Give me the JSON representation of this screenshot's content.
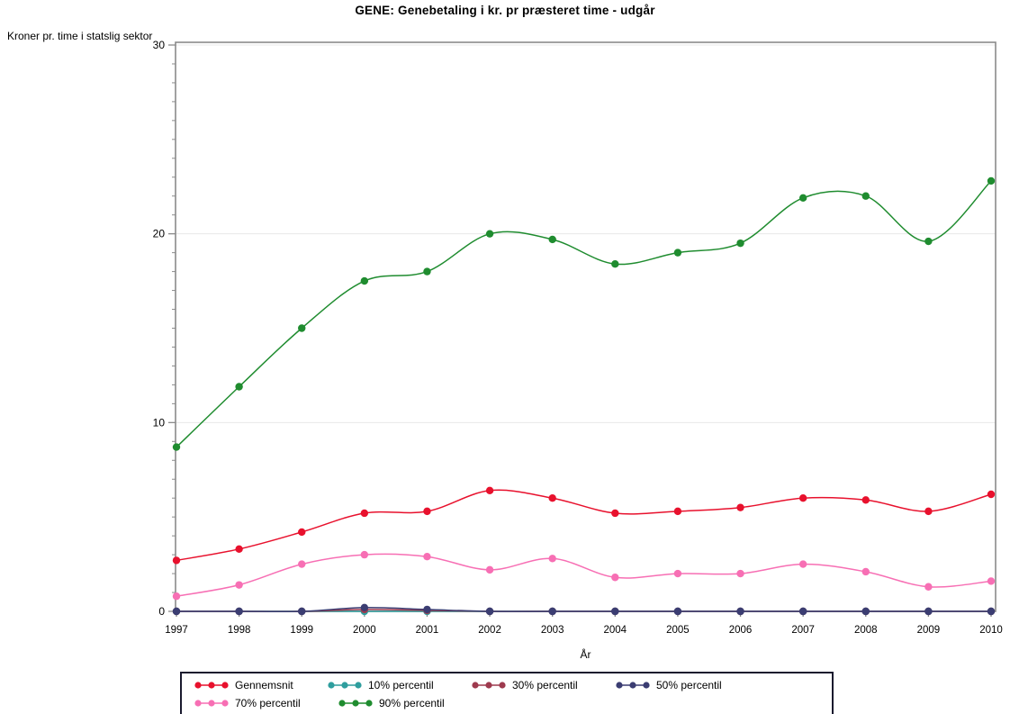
{
  "chart": {
    "title": "GENE: Genebetaling i kr. pr præsteret time - udgår",
    "y_axis_caption": "Kroner pr. time i statslig sektor",
    "x_axis_label": "År"
  },
  "chart_data": {
    "type": "line",
    "title": "GENE: Genebetaling i kr. pr præsteret time - udgår",
    "xlabel": "År",
    "ylabel": "Kroner pr. time i statslig sektor",
    "x": [
      1997,
      1998,
      1999,
      2000,
      2001,
      2002,
      2003,
      2004,
      2005,
      2006,
      2007,
      2008,
      2009,
      2010
    ],
    "ylim": [
      0,
      30
    ],
    "yticks_major": [
      0,
      10,
      20,
      30
    ],
    "ytick_minor_step": 1,
    "grid": "horizontal-major-light",
    "legend_position": "bottom-box",
    "frame_color": "#8a8a8a",
    "grid_color": "#e8e8e8",
    "series": [
      {
        "name": "Gennemsnit",
        "color": "#e8112d",
        "values": [
          2.7,
          3.3,
          4.2,
          5.2,
          5.3,
          6.4,
          6.0,
          5.2,
          5.3,
          5.5,
          6.0,
          5.9,
          5.3,
          6.2
        ]
      },
      {
        "name": "10% percentil",
        "color": "#2f9e9e",
        "values": [
          0,
          0,
          0,
          0,
          0,
          0,
          0,
          0,
          0,
          0,
          0,
          0,
          0,
          0
        ]
      },
      {
        "name": "30% percentil",
        "color": "#9e3a4e",
        "values": [
          0,
          0,
          0,
          0.1,
          0.05,
          0,
          0,
          0,
          0,
          0,
          0,
          0,
          0,
          0
        ]
      },
      {
        "name": "50% percentil",
        "color": "#3b3d72",
        "values": [
          0,
          0,
          0,
          0.2,
          0.1,
          0,
          0,
          0,
          0,
          0,
          0,
          0,
          0,
          0
        ]
      },
      {
        "name": "70% percentil",
        "color": "#f76fb4",
        "values": [
          0.8,
          1.4,
          2.5,
          3.0,
          2.9,
          2.2,
          2.8,
          1.8,
          2.0,
          2.0,
          2.5,
          2.1,
          1.3,
          1.6
        ]
      },
      {
        "name": "90% percentil",
        "color": "#1f8c2f",
        "values": [
          8.7,
          11.9,
          15.0,
          17.5,
          18.0,
          20.0,
          19.7,
          18.4,
          19.0,
          19.5,
          21.9,
          22.0,
          19.6,
          22.8
        ]
      }
    ]
  }
}
